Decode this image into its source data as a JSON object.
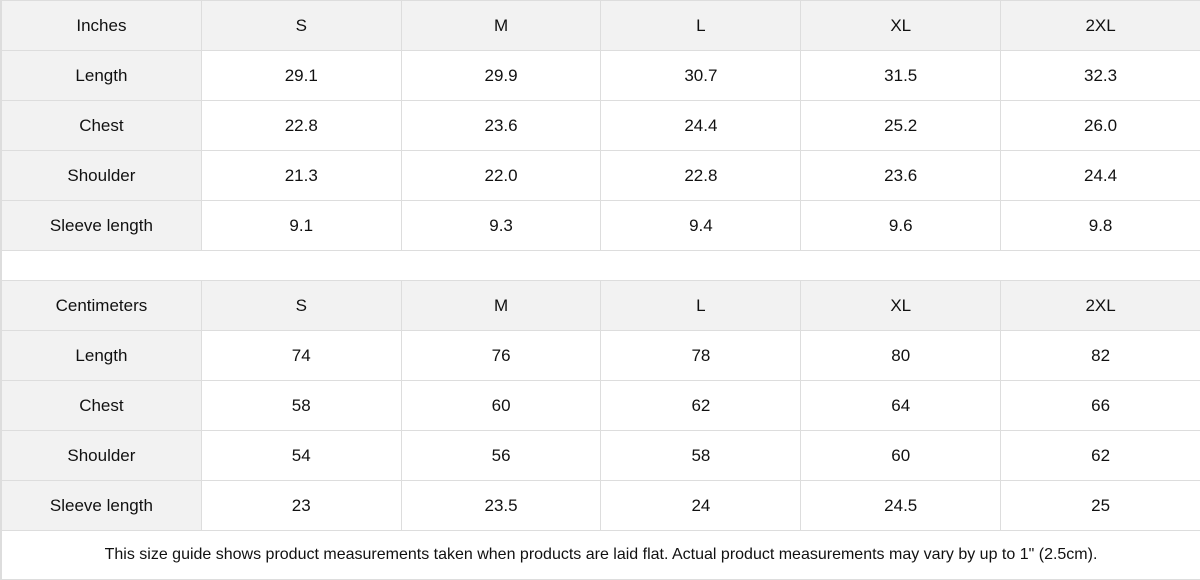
{
  "tables": [
    {
      "headers": [
        "Inches",
        "S",
        "M",
        "L",
        "XL",
        "2XL"
      ],
      "rows": [
        {
          "label": "Length",
          "values": [
            "29.1",
            "29.9",
            "30.7",
            "31.5",
            "32.3"
          ]
        },
        {
          "label": "Chest",
          "values": [
            "22.8",
            "23.6",
            "24.4",
            "25.2",
            "26.0"
          ]
        },
        {
          "label": "Shoulder",
          "values": [
            "21.3",
            "22.0",
            "22.8",
            "23.6",
            "24.4"
          ]
        },
        {
          "label": "Sleeve length",
          "values": [
            "9.1",
            "9.3",
            "9.4",
            "9.6",
            "9.8"
          ]
        }
      ]
    },
    {
      "headers": [
        "Centimeters",
        "S",
        "M",
        "L",
        "XL",
        "2XL"
      ],
      "rows": [
        {
          "label": "Length",
          "values": [
            "74",
            "76",
            "78",
            "80",
            "82"
          ]
        },
        {
          "label": "Chest",
          "values": [
            "58",
            "60",
            "62",
            "64",
            "66"
          ]
        },
        {
          "label": "Shoulder",
          "values": [
            "54",
            "56",
            "58",
            "60",
            "62"
          ]
        },
        {
          "label": "Sleeve length",
          "values": [
            "23",
            "23.5",
            "24",
            "24.5",
            "25"
          ]
        }
      ]
    }
  ],
  "note": "This size guide shows product measurements taken when products are laid flat.  Actual product measurements may vary by up to 1\" (2.5cm).",
  "colors": {
    "header_bg": "#f2f2f2",
    "border": "#dddddd"
  }
}
